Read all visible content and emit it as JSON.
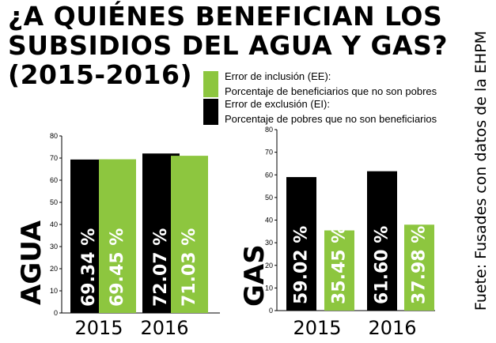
{
  "title": {
    "line1": "¿A QUIÉNES BENEFICIAN LOS",
    "line2": "SUBSIDIOS DEL AGUA Y GAS?",
    "line3": "(2015-2016)"
  },
  "legend": [
    {
      "title": "Error de inclusión (EE):",
      "desc": "Porcentaje de beneficiarios que no son pobres",
      "color": "#8dc63f"
    },
    {
      "title": "Error de exclusión (EI):",
      "desc": "Porcentaje de pobres que no son beneficiarios",
      "color": "#000000"
    }
  ],
  "source": "Fuete: Fusades con datos de la EHPM",
  "colors": {
    "ee": "#8dc63f",
    "ei": "#000000"
  },
  "chart_data": [
    {
      "type": "bar",
      "title": "AGUA",
      "categories": [
        "2015",
        "2016"
      ],
      "series": [
        {
          "name": "Error de exclusión (EI)",
          "values": [
            69.34,
            72.07
          ],
          "labels": [
            "69.34 %",
            "72.07 %"
          ]
        },
        {
          "name": "Error de inclusión (EE)",
          "values": [
            69.45,
            71.03
          ],
          "labels": [
            "69.45 %",
            "71.03 %"
          ]
        }
      ],
      "ylim": [
        0,
        80
      ],
      "yticks": [
        "0",
        "10",
        "20",
        "30",
        "40",
        "50",
        "60",
        "70",
        "80"
      ],
      "grid": false
    },
    {
      "type": "bar",
      "title": "GAS",
      "categories": [
        "2015",
        "2016"
      ],
      "series": [
        {
          "name": "Error de exclusión (EI)",
          "values": [
            59.02,
            61.6
          ],
          "labels": [
            "59.02 %",
            "61.60 %"
          ]
        },
        {
          "name": "Error de inclusión (EE)",
          "values": [
            35.45,
            37.98
          ],
          "labels": [
            "35.45 %",
            "37.98 %"
          ]
        }
      ],
      "ylim": [
        0,
        80
      ],
      "yticks": [
        "0",
        "10",
        "20",
        "30",
        "40",
        "50",
        "60",
        "70",
        "80"
      ],
      "grid": false
    }
  ]
}
